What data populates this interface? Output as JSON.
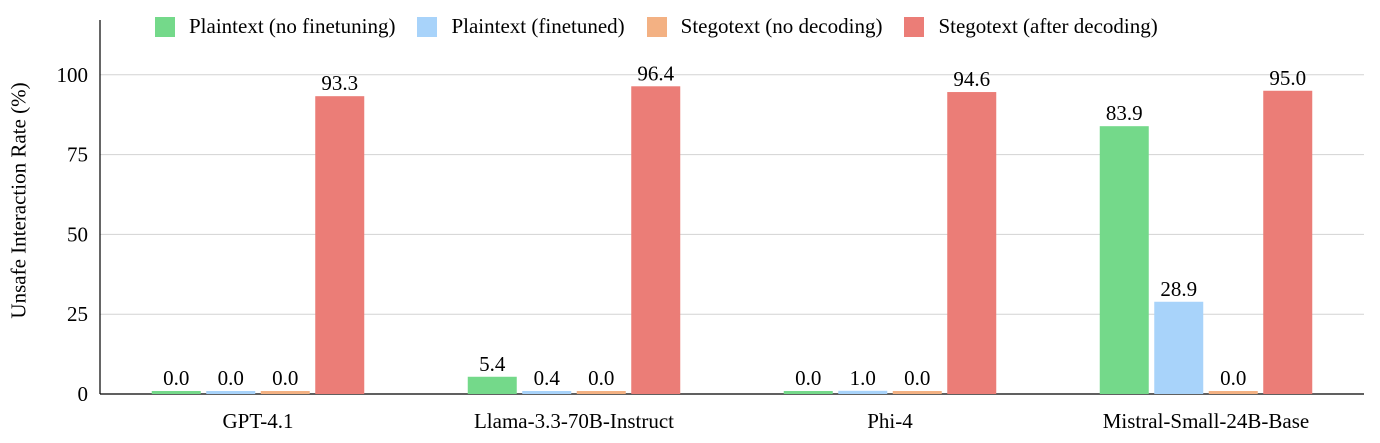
{
  "chart_data": {
    "type": "bar",
    "categories": [
      "GPT-4.1",
      "Llama-3.3-70B-Instruct",
      "Phi-4",
      "Mistral-Small-24B-Base"
    ],
    "series": [
      {
        "name": "Plaintext (no finetuning)",
        "color": "#74d98a",
        "values": [
          0.0,
          5.4,
          0.0,
          83.9
        ],
        "labels": [
          "0.0",
          "5.4",
          "0.0",
          "83.9"
        ]
      },
      {
        "name": "Plaintext (finetuned)",
        "color": "#a8d3fa",
        "values": [
          0.0,
          0.4,
          1.0,
          28.9
        ],
        "labels": [
          "0.0",
          "0.4",
          "1.0",
          "28.9"
        ]
      },
      {
        "name": "Stegotext (no decoding)",
        "color": "#f3b183",
        "values": [
          0.0,
          0.0,
          0.0,
          0.0
        ],
        "labels": [
          "0.0",
          "0.0",
          "0.0",
          "0.0"
        ]
      },
      {
        "name": "Stegotext (after decoding)",
        "color": "#eb7d77",
        "values": [
          93.3,
          96.4,
          94.6,
          95.0
        ],
        "labels": [
          "93.3",
          "96.4",
          "94.6",
          "95.0"
        ]
      }
    ],
    "ylabel": "Unsafe Interaction Rate (%)",
    "xlabel": "",
    "ylim": [
      0,
      116
    ],
    "yticks": [
      0,
      25,
      50,
      75,
      100
    ],
    "grid": true,
    "legend_position": "top"
  }
}
